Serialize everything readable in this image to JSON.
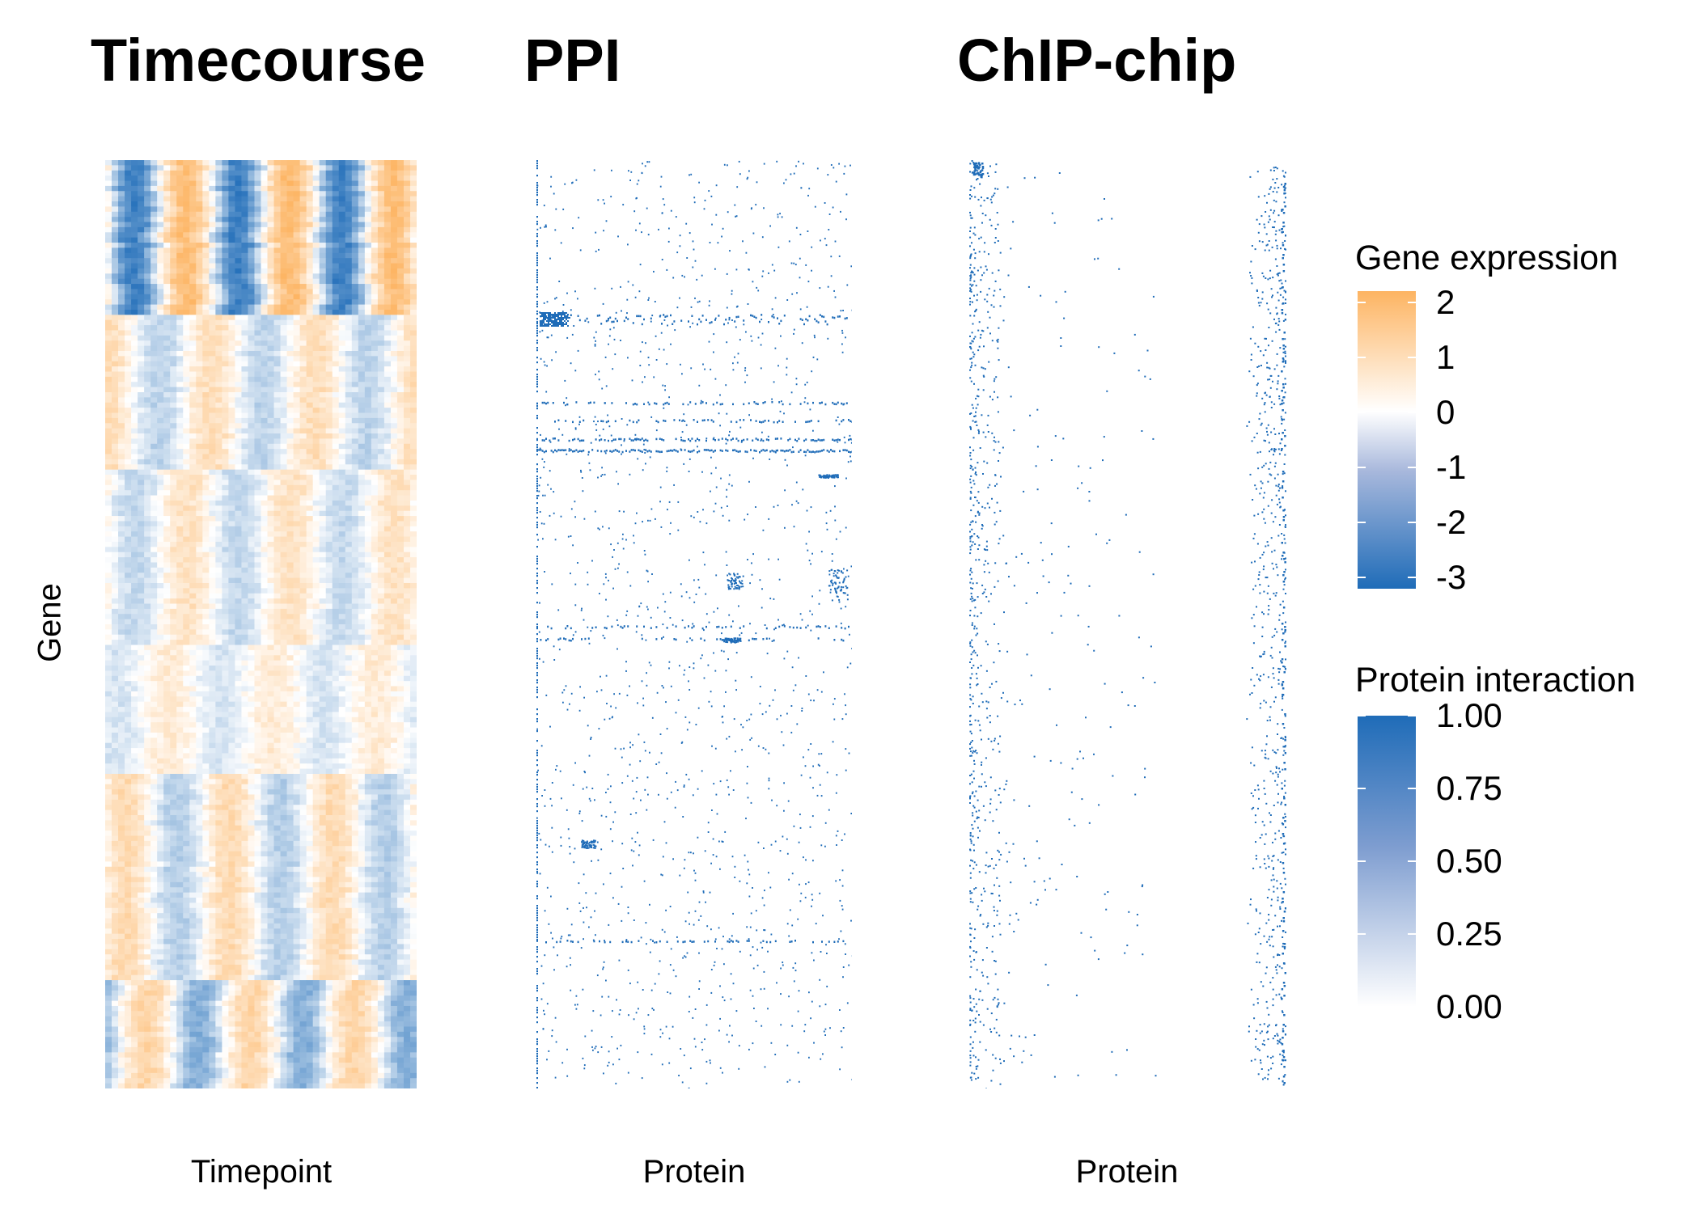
{
  "colors": {
    "accent_orange": "#FDB462",
    "accent_blue": "#1F6CB8",
    "zero": "#FFFFFF"
  },
  "chart_data": [
    {
      "type": "heatmap",
      "title": "Timecourse",
      "xlabel": "Timepoint",
      "ylabel": "Gene",
      "n_timepoints": 48,
      "n_gene_bins": 180,
      "value_range": [
        -3,
        2
      ],
      "colorscale": "orange(+) to white(0) to blue(-)",
      "legend_title": "Gene expression",
      "legend_ticks": [
        "2",
        "1",
        "0",
        "-1",
        "-2",
        "-3"
      ],
      "legend_tick_values": [
        2,
        1,
        0,
        -1,
        -2,
        -3
      ]
    },
    {
      "type": "heatmap",
      "title": "PPI",
      "xlabel": "Protein",
      "ylabel": "Gene",
      "layout": "sparse binary interaction matrix",
      "value_range": [
        0,
        1
      ],
      "legend_title": "Protein interaction",
      "legend_ticks": [
        "1.00",
        "0.75",
        "0.50",
        "0.25",
        "0.00"
      ],
      "legend_tick_values": [
        1,
        0.75,
        0.5,
        0.25,
        0
      ]
    },
    {
      "type": "heatmap",
      "title": "ChIP-chip",
      "xlabel": "Protein",
      "ylabel": "Gene",
      "layout": "sparse binary matrix, dense left and right bands",
      "value_range": [
        0,
        1
      ]
    }
  ]
}
